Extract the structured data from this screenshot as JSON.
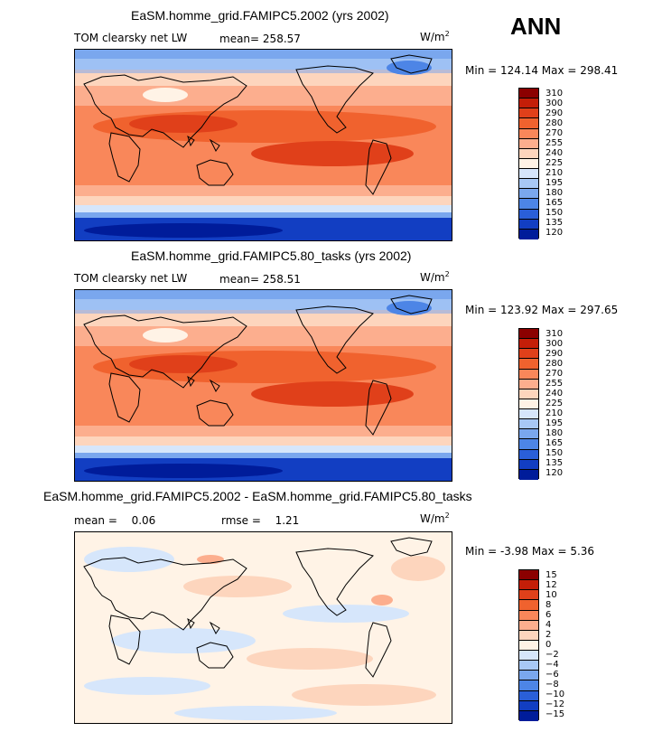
{
  "season_label": "ANN",
  "panels": [
    {
      "title": "EaSM.homme_grid.FAMIPC5.2002 (yrs 2002)",
      "left_label": "TOM clearsky net LW",
      "stat_label": "mean=",
      "stat_value": "258.57",
      "units": "W/m",
      "units_sup": "2",
      "minmax": "Min = 124.14 Max = 298.41"
    },
    {
      "title": "EaSM.homme_grid.FAMIPC5.80_tasks (yrs 2002)",
      "left_label": "TOM clearsky net LW",
      "stat_label": "mean=",
      "stat_value": "258.51",
      "units": "W/m",
      "units_sup": "2",
      "minmax": "Min = 123.92 Max = 297.65"
    },
    {
      "title": "EaSM.homme_grid.FAMIPC5.2002 - EaSM.homme_grid.FAMIPC5.80_tasks",
      "mean_label": "mean =",
      "mean_value": "0.06",
      "rmse_label": "rmse =",
      "rmse_value": "1.21",
      "units": "W/m",
      "units_sup": "2",
      "minmax": "Min =  -3.98 Max =   5.36"
    }
  ],
  "chart_data": [
    {
      "type": "heatmap",
      "title": "EaSM.homme_grid.FAMIPC5.2002 (yrs 2002)",
      "variable": "TOM clearsky net LW",
      "units": "W/m2",
      "mean": 258.57,
      "min": 124.14,
      "max": 298.41,
      "colorbar_levels": [
        "310",
        "300",
        "290",
        "280",
        "270",
        "255",
        "240",
        "225",
        "210",
        "195",
        "180",
        "165",
        "150",
        "135",
        "120"
      ],
      "colorbar_colors": [
        "#8b0000",
        "#c41e08",
        "#e0401a",
        "#f0622e",
        "#f9875a",
        "#fcae8e",
        "#fdd5bd",
        "#fff3e6",
        "#d6e6fb",
        "#a8c8f5",
        "#7aa7ee",
        "#4d85e6",
        "#2a5fd8",
        "#123ec2",
        "#001c9a"
      ]
    },
    {
      "type": "heatmap",
      "title": "EaSM.homme_grid.FAMIPC5.80_tasks (yrs 2002)",
      "variable": "TOM clearsky net LW",
      "units": "W/m2",
      "mean": 258.51,
      "min": 123.92,
      "max": 297.65,
      "colorbar_levels": [
        "310",
        "300",
        "290",
        "280",
        "270",
        "255",
        "240",
        "225",
        "210",
        "195",
        "180",
        "165",
        "150",
        "135",
        "120"
      ],
      "colorbar_colors": [
        "#8b0000",
        "#c41e08",
        "#e0401a",
        "#f0622e",
        "#f9875a",
        "#fcae8e",
        "#fdd5bd",
        "#fff3e6",
        "#d6e6fb",
        "#a8c8f5",
        "#7aa7ee",
        "#4d85e6",
        "#2a5fd8",
        "#123ec2",
        "#001c9a"
      ]
    },
    {
      "type": "heatmap",
      "title": "EaSM.homme_grid.FAMIPC5.2002 - EaSM.homme_grid.FAMIPC5.80_tasks",
      "units": "W/m2",
      "mean": 0.06,
      "rmse": 1.21,
      "min": -3.98,
      "max": 5.36,
      "colorbar_levels": [
        "15",
        "12",
        "10",
        "8",
        "6",
        "4",
        "2",
        "0",
        "−2",
        "−4",
        "−6",
        "−8",
        "−10",
        "−12",
        "−15"
      ],
      "colorbar_colors": [
        "#8b0000",
        "#c41e08",
        "#e0401a",
        "#f0622e",
        "#f9875a",
        "#fcae8e",
        "#fdd5bd",
        "#fff3e6",
        "#d6e6fb",
        "#a8c8f5",
        "#7aa7ee",
        "#4d85e6",
        "#2a5fd8",
        "#123ec2",
        "#001c9a"
      ]
    }
  ]
}
